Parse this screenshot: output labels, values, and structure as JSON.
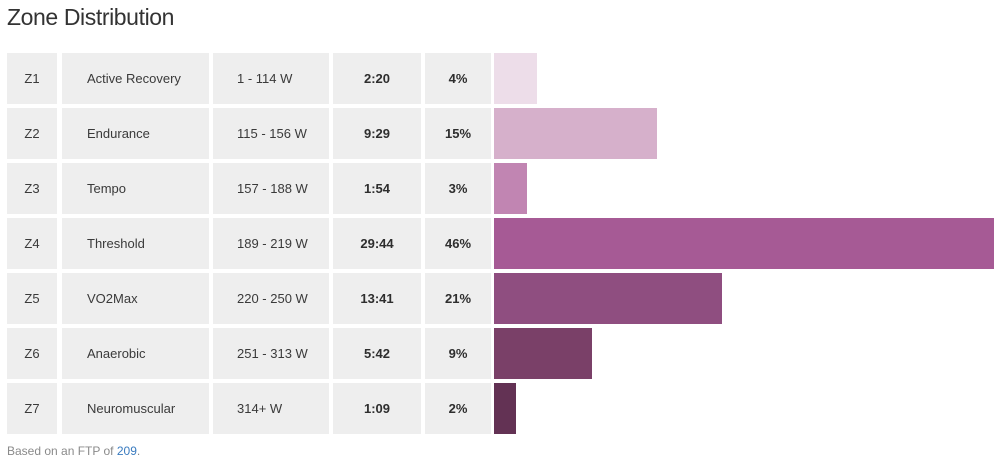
{
  "title": "Zone Distribution",
  "footnote": {
    "prefix": "Based on an FTP of ",
    "ftp": "209",
    "suffix": "."
  },
  "chart_data": {
    "type": "bar",
    "title": "Zone Distribution",
    "orientation": "horizontal",
    "categories": [
      "Z1",
      "Z2",
      "Z3",
      "Z4",
      "Z5",
      "Z6",
      "Z7"
    ],
    "values": [
      4,
      15,
      3,
      46,
      21,
      9,
      2
    ],
    "value_unit": "%",
    "rows": [
      {
        "zone": "Z1",
        "name": "Active Recovery",
        "range": "1 - 114 W",
        "time": "2:20",
        "percent": "4%",
        "color": "#eddde9"
      },
      {
        "zone": "Z2",
        "name": "Endurance",
        "range": "115 - 156 W",
        "time": "9:29",
        "percent": "15%",
        "color": "#d6b0cb"
      },
      {
        "zone": "Z3",
        "name": "Tempo",
        "range": "157 - 188 W",
        "time": "1:54",
        "percent": "3%",
        "color": "#c185b2"
      },
      {
        "zone": "Z4",
        "name": "Threshold",
        "range": "189 - 219 W",
        "time": "29:44",
        "percent": "46%",
        "color": "#a65a95"
      },
      {
        "zone": "Z5",
        "name": "VO2Max",
        "range": "220 - 250 W",
        "time": "13:41",
        "percent": "21%",
        "color": "#8f4e80"
      },
      {
        "zone": "Z6",
        "name": "Anaerobic",
        "range": "251 - 313 W",
        "time": "5:42",
        "percent": "9%",
        "color": "#7a4068"
      },
      {
        "zone": "Z7",
        "name": "Neuromuscular",
        "range": "314+ W",
        "time": "1:09",
        "percent": "2%",
        "color": "#633254"
      }
    ]
  }
}
